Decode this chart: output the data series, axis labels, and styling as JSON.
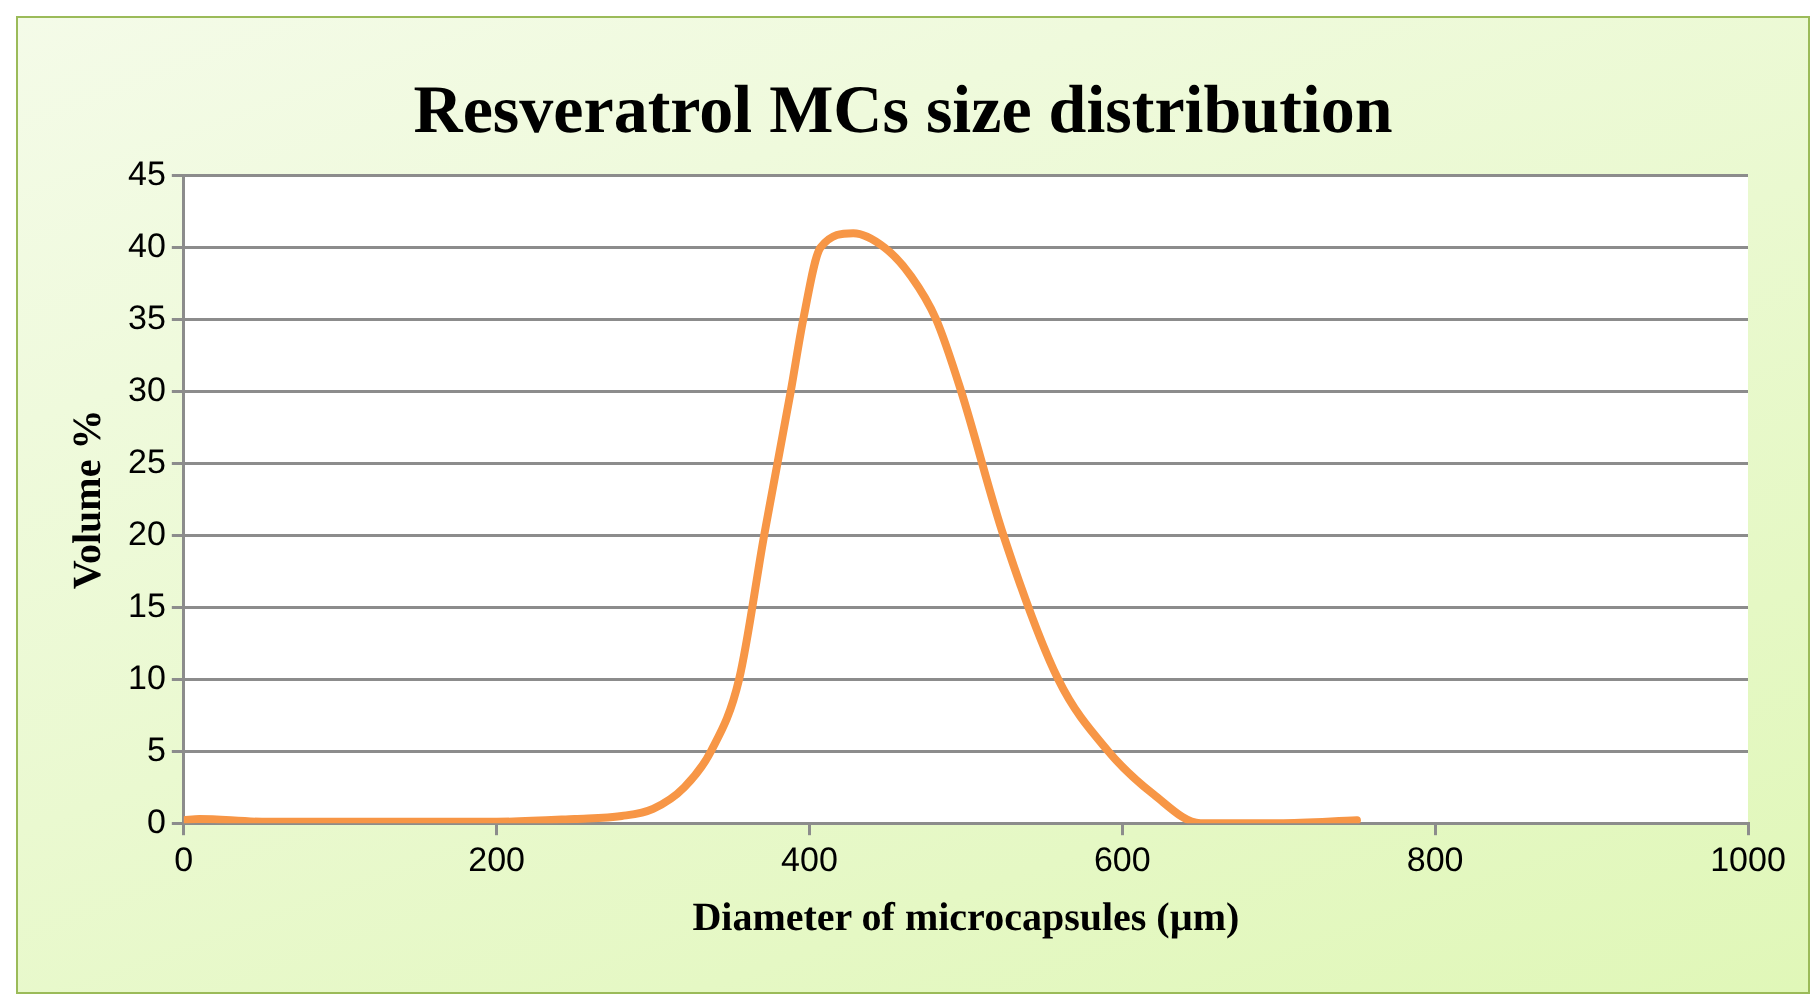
{
  "chart_data": {
    "type": "line",
    "title": "Resveratrol MCs size distribution",
    "xlabel": "Diameter of microcapsules (µm)",
    "ylabel": "Volume %",
    "x": [
      0,
      10,
      50,
      100,
      150,
      200,
      250,
      280,
      300,
      320,
      337,
      355,
      371,
      388,
      396,
      407,
      428,
      448,
      465,
      481,
      497,
      524,
      559,
      591,
      620,
      650,
      700,
      750
    ],
    "series": [
      {
        "color": "#f79646",
        "values": [
          0.2,
          0.3,
          0.1,
          0.1,
          0.1,
          0.1,
          0.3,
          0.5,
          1,
          2.5,
          5,
          10,
          20,
          30,
          35,
          40,
          41,
          40,
          38,
          35,
          30,
          20,
          10,
          5,
          2,
          0,
          0,
          0.2
        ]
      }
    ],
    "xlim": [
      0,
      1000
    ],
    "xticks": [
      0,
      200,
      400,
      600,
      800,
      1000
    ],
    "ylim": [
      0,
      45
    ],
    "yticks": [
      0,
      5,
      10,
      15,
      20,
      25,
      30,
      35,
      40,
      45
    ],
    "grid": "y",
    "legend": false,
    "marker": "none",
    "line_style": "solid"
  }
}
